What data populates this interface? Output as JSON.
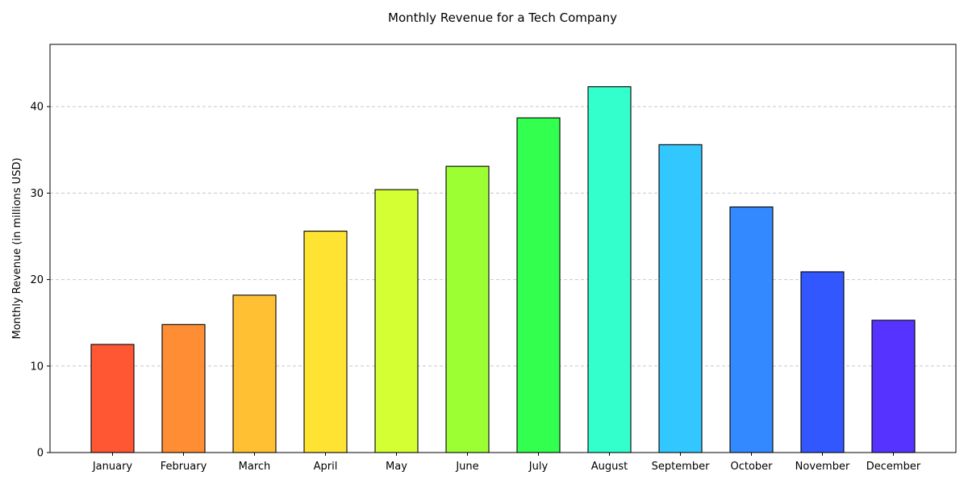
{
  "chart_data": {
    "type": "bar",
    "title": "Monthly Revenue for a Tech Company",
    "xlabel": "",
    "ylabel": "Monthly Revenue (in millions USD)",
    "categories": [
      "January",
      "February",
      "March",
      "April",
      "May",
      "June",
      "July",
      "August",
      "September",
      "October",
      "November",
      "December"
    ],
    "values": [
      12.5,
      14.8,
      18.2,
      25.6,
      30.4,
      33.1,
      38.7,
      42.3,
      35.6,
      28.4,
      20.9,
      15.3
    ],
    "colors": [
      "#ff5733",
      "#ff8d33",
      "#ffc133",
      "#ffe333",
      "#d4ff33",
      "#9bff33",
      "#33ff4f",
      "#33ffcc",
      "#33c7ff",
      "#3389ff",
      "#3357ff",
      "#5733ff"
    ],
    "ylim": [
      0,
      47.2
    ],
    "yticks": [
      0,
      10,
      20,
      30,
      40
    ],
    "grid": "horizontal dashed",
    "legend": "none"
  }
}
